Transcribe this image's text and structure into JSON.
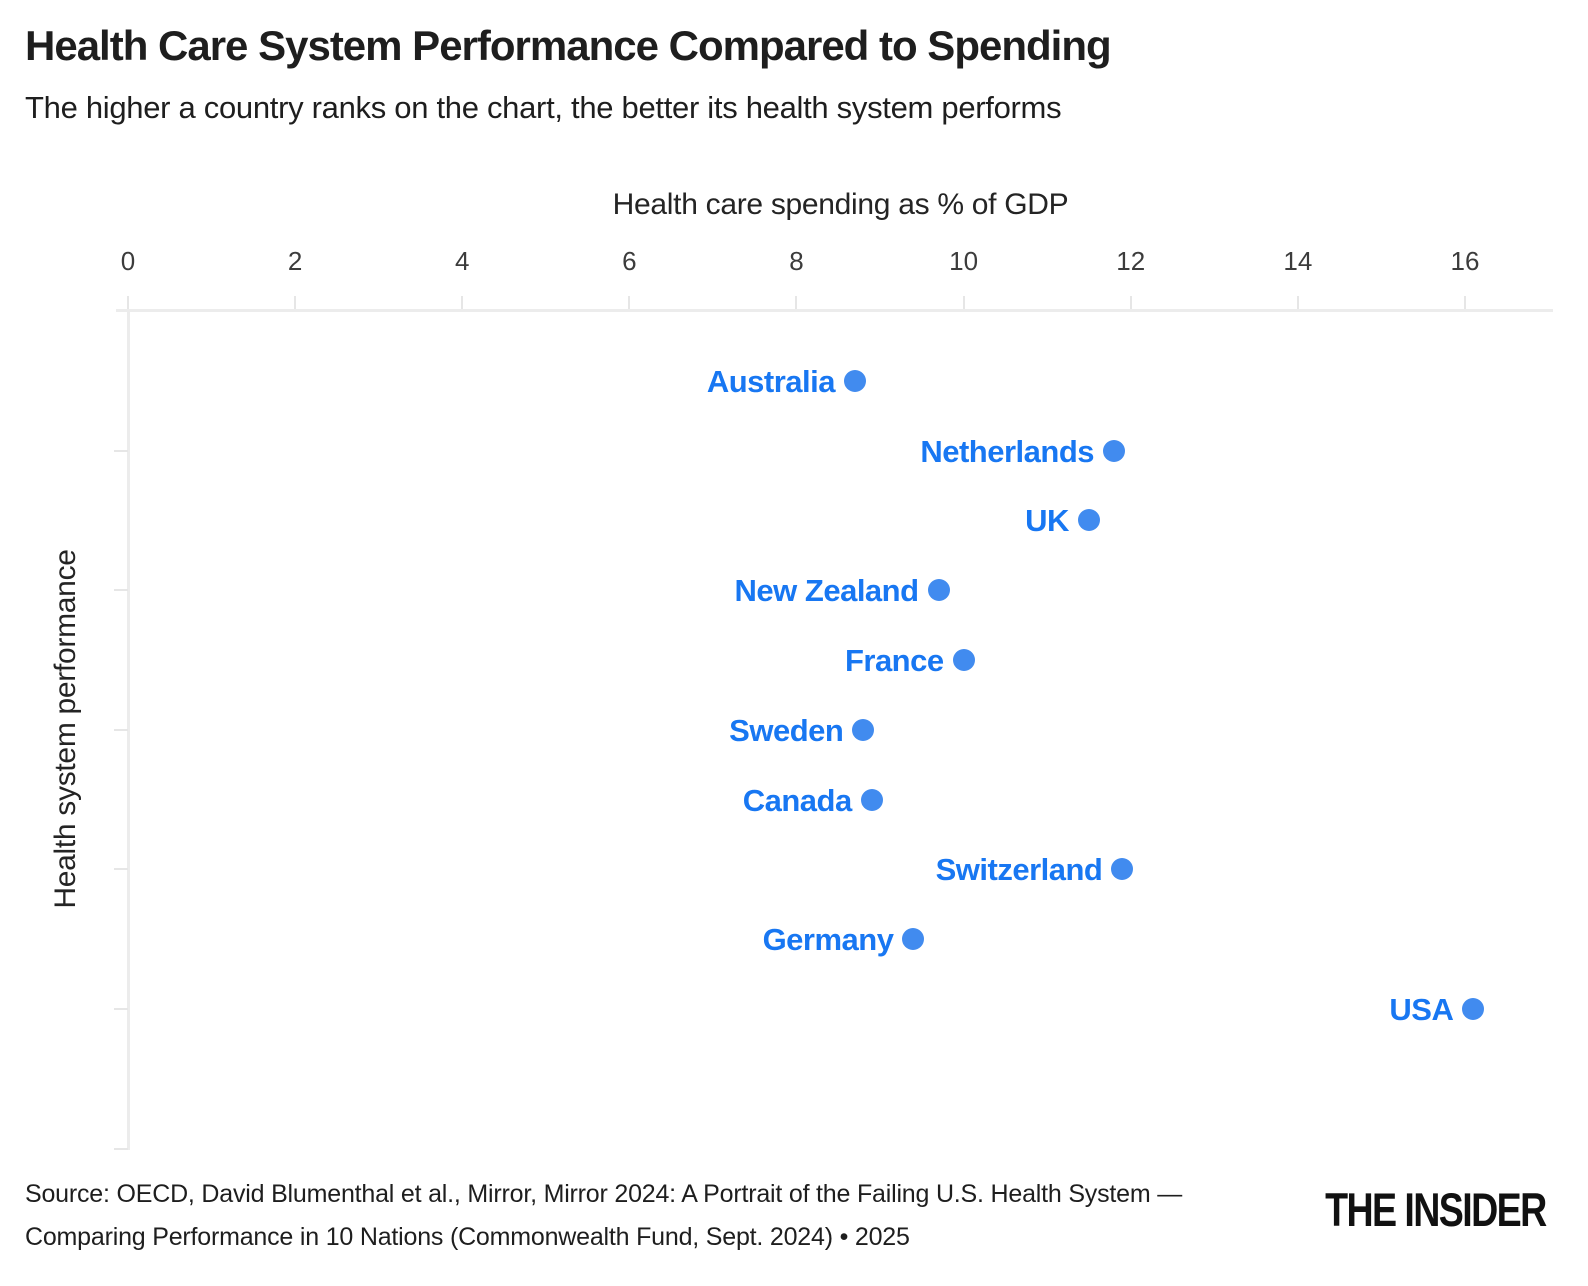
{
  "header": {
    "title": "Health Care System Performance Compared to Spending",
    "subtitle": "The higher a country ranks on the chart, the better its health system performs"
  },
  "chart_data": {
    "type": "scatter",
    "title": "Health Care System Performance Compared to Spending",
    "subtitle": "The higher a country ranks on the chart, the better its health system performs",
    "xlabel": "Health care spending as % of GDP",
    "ylabel": "Health system performance",
    "xlim": [
      0,
      17
    ],
    "x_ticks": [
      0,
      2,
      4,
      6,
      8,
      10,
      12,
      14,
      16
    ],
    "y_axis_note": "performance rank, 1 = best at top; no numeric labels shown",
    "grid": "off",
    "legend": "none",
    "points": [
      {
        "country": "Australia",
        "spending_pct_gdp": 8.7,
        "performance_rank": 1
      },
      {
        "country": "Netherlands",
        "spending_pct_gdp": 11.8,
        "performance_rank": 2
      },
      {
        "country": "UK",
        "spending_pct_gdp": 11.5,
        "performance_rank": 3
      },
      {
        "country": "New Zealand",
        "spending_pct_gdp": 9.7,
        "performance_rank": 4
      },
      {
        "country": "France",
        "spending_pct_gdp": 10.0,
        "performance_rank": 5
      },
      {
        "country": "Sweden",
        "spending_pct_gdp": 8.8,
        "performance_rank": 6
      },
      {
        "country": "Canada",
        "spending_pct_gdp": 8.9,
        "performance_rank": 7
      },
      {
        "country": "Switzerland",
        "spending_pct_gdp": 11.9,
        "performance_rank": 8
      },
      {
        "country": "Germany",
        "spending_pct_gdp": 9.4,
        "performance_rank": 9
      },
      {
        "country": "USA",
        "spending_pct_gdp": 16.1,
        "performance_rank": 10
      }
    ]
  },
  "colors": {
    "dot": "#418bef",
    "point_label": "#1877f2",
    "axis_line": "#ececec",
    "tick": "#e6e6e6",
    "tick_label": "#3c3c3c",
    "text": "#1e1e1e"
  },
  "footer": {
    "source_lines": [
      "Source: OECD, David Blumenthal et al., Mirror, Mirror 2024: A Portrait of the Failing U.S. Health System —",
      "Comparing Performance in 10 Nations (Commonwealth Fund, Sept. 2024) • 2025"
    ],
    "logo": "THE INSIDER"
  }
}
